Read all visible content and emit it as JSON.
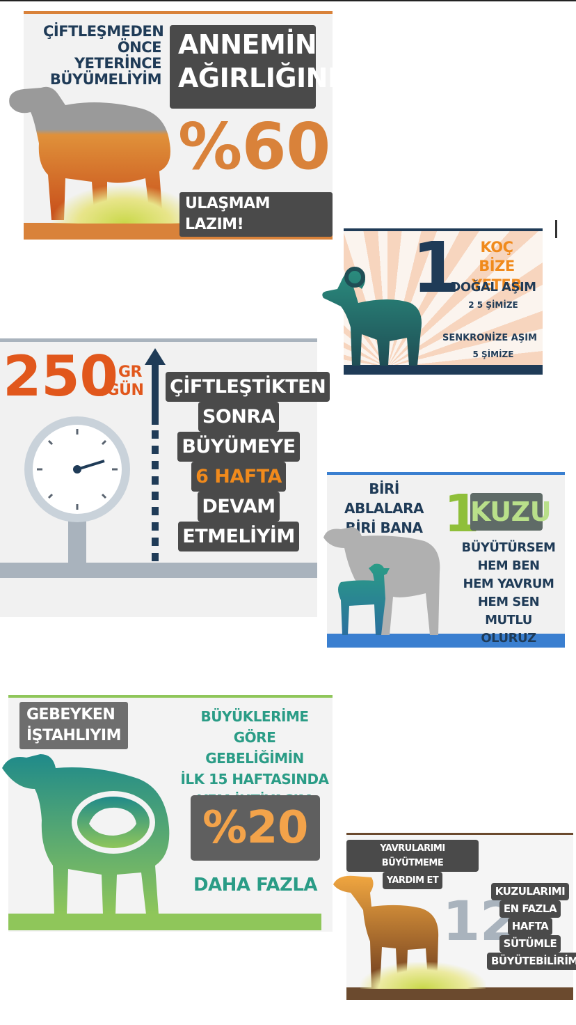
{
  "panel1": {
    "headline": [
      "ÇİFTLEŞMEDEN",
      "ÖNCE",
      "YETERİNCE",
      "BÜYÜMELİYİM"
    ],
    "tag_lines": [
      "ANNEMİN",
      "AĞIRLIĞININ"
    ],
    "percent": "%60",
    "footer": "ULAŞMAM LAZIM!"
  },
  "panel2": {
    "number": "1",
    "title_lines": [
      "KOÇ",
      "BİZE YETER"
    ],
    "natural": "DOĞAL AŞIM",
    "natural_ratio": "2 5 ŞİMİZE",
    "sync": "SENKRONİZE AŞIM",
    "sync_ratio": "5 ŞİMİZE"
  },
  "panel3": {
    "value": "250",
    "unit_lines": [
      "GR",
      "/GÜN"
    ],
    "text_lines": [
      "ÇİFTLEŞTİKTEN",
      "SONRA",
      "BÜYÜMEYE",
      "6 HAFTA",
      "DEVAM",
      "ETMELİYİM"
    ]
  },
  "panel4": {
    "left_lines": [
      "BİRİ ABLALARA",
      "BİRİ BANA"
    ],
    "number": "1",
    "kuzu": "KUZU",
    "body_lines": [
      "BÜYÜTÜRSEM",
      "HEM BEN",
      "HEM YAVRUM",
      "HEM SEN",
      "MUTLU OLURUZ"
    ]
  },
  "panel5": {
    "tag_lines": [
      "GEBEYKEN",
      "İŞTAHLIYIM"
    ],
    "text_lines": [
      "BÜYÜKLERİME GÖRE",
      "GEBELİĞİMİN",
      "İLK 15 HAFTASINDA",
      "YEM İHTİYACIM"
    ],
    "percent": "%20",
    "footer": "DAHA FAZLA"
  },
  "panel6": {
    "tag_lines": [
      "YAVRULARIMI BÜYÜTMEME",
      "YARDIM ET"
    ],
    "number": "12",
    "text_lines": [
      "KUZULARIMI",
      "EN FAZLA",
      "HAFTA",
      "SÜTÜMLE",
      "BÜYÜTEBİLİRİM"
    ]
  },
  "colors": {
    "orange": "#d9823a",
    "dark_gray": "#4a4a4a",
    "navy": "#1f3b57",
    "green": "#7cb342",
    "teal": "#2a8c7e",
    "blue": "#3a7fd0"
  },
  "icons": [
    "sheep-silhouette-icon",
    "ram-silhouette-icon",
    "scale-gauge-icon",
    "up-arrow-icon",
    "ewe-and-lamb-icon",
    "pregnant-sheep-icon",
    "lamb-silhouette-icon"
  ]
}
